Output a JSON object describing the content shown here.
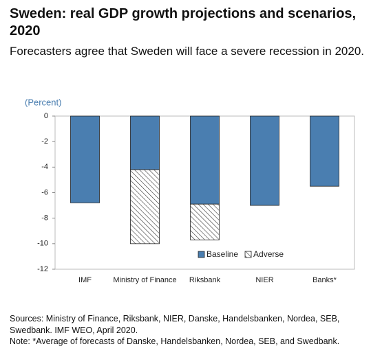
{
  "chart_data": {
    "type": "stacked_bar",
    "title": "Sweden: real GDP growth projections and scenarios, 2020",
    "subtitle": "Forecasters agree that Sweden will face a severe recession in 2020.",
    "y_label": "(Percent)",
    "categories": [
      "IMF",
      "Ministry of Finance",
      "Riksbank",
      "NIER",
      "Banks*"
    ],
    "series": [
      {
        "name": "Baseline",
        "color": "#4a7eb0",
        "values": [
          -6.8,
          -4.2,
          -6.9,
          -7.0,
          -5.5
        ]
      },
      {
        "name": "Adverse",
        "color": "#333333",
        "hatch": true,
        "values": [
          null,
          -5.8,
          -2.8,
          null,
          null
        ]
      }
    ],
    "ylim": [
      -12,
      0
    ],
    "yticks": [
      0,
      -2,
      -4,
      -6,
      -8,
      -10,
      -12
    ],
    "legend": "bottom",
    "sources": "Sources: Ministry of Finance, Riksbank, NIER, Danske, Handelsbanken, Nordea, SEB, Swedbank. IMF WEO, April 2020.",
    "note": "Note: *Average of forecasts of Danske, Handelsbanken, Nordea, SEB, and Swedbank."
  }
}
